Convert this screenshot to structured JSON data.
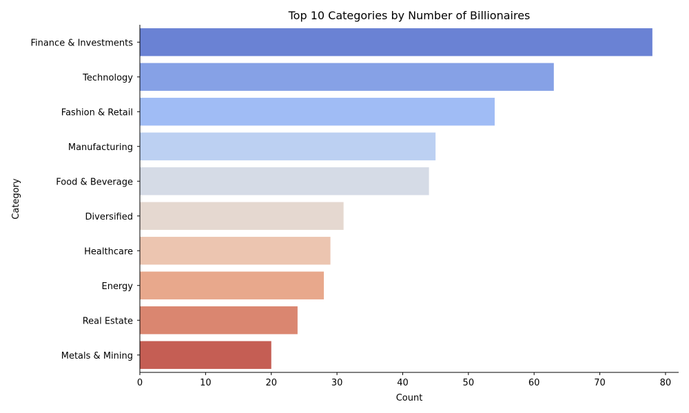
{
  "chart_data": {
    "type": "bar",
    "orientation": "horizontal",
    "title": "Top 10 Categories by Number of Billionaires",
    "xlabel": "Count",
    "ylabel": "Category",
    "xlim": [
      0,
      82
    ],
    "xticks": [
      0,
      10,
      20,
      30,
      40,
      50,
      60,
      70,
      80
    ],
    "grid": false,
    "categories": [
      "Finance & Investments",
      "Technology",
      "Fashion & Retail",
      "Manufacturing",
      "Food & Beverage",
      "Diversified",
      "Healthcare",
      "Energy",
      "Real Estate",
      "Metals & Mining"
    ],
    "values": [
      78,
      63,
      54,
      45,
      44,
      31,
      29,
      28,
      24,
      20
    ],
    "colors": [
      "#6a82d4",
      "#86a1e6",
      "#a0bcf5",
      "#bcd0f2",
      "#d5dbe6",
      "#e5d8d0",
      "#ecc5b0",
      "#e8a88c",
      "#da8670",
      "#c55e54"
    ]
  }
}
